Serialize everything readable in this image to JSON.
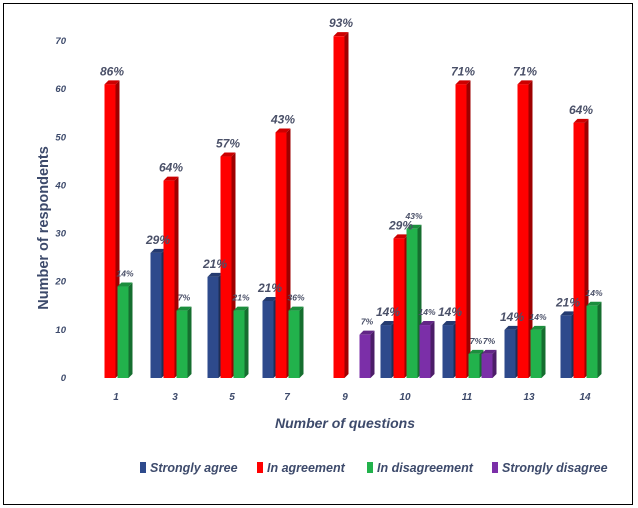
{
  "chart_data": {
    "type": "bar",
    "xlabel": "Number of questions",
    "ylabel": "Number of respondents",
    "ylim": [
      0,
      70
    ],
    "yticks": [
      "0",
      "10",
      "20",
      "30",
      "40",
      "50",
      "60",
      "70"
    ],
    "categories": [
      "1",
      "3",
      "5",
      "7",
      "9",
      "10",
      "11",
      "13",
      "14"
    ],
    "series": [
      {
        "name": "Strongly agree",
        "color": "#2e4a8c",
        "values": [
          0,
          26,
          21,
          16,
          0,
          11,
          11,
          10,
          13
        ],
        "labels": [
          "",
          "29%",
          "21%",
          "21%",
          "",
          "14%",
          "14%",
          "14%",
          "21%"
        ]
      },
      {
        "name": "In agreement",
        "color": "#ff0000",
        "values": [
          61,
          41,
          46,
          51,
          71,
          29,
          61,
          61,
          53
        ],
        "labels": [
          "86%",
          "64%",
          "57%",
          "43%",
          "93%",
          "29%",
          "71%",
          "71%",
          "64%"
        ]
      },
      {
        "name": "In disagreement",
        "color": "#22b24c",
        "values": [
          19,
          14,
          14,
          14,
          0,
          31,
          5,
          10,
          15
        ],
        "labels": [
          "14%",
          "7%",
          "21%",
          "36%",
          "",
          "43%",
          "7%",
          "14%",
          "14%"
        ]
      },
      {
        "name": "Strongly disagree",
        "color": "#7b2fa8",
        "values": [
          0,
          0,
          0,
          0,
          9,
          11,
          5,
          0,
          0
        ],
        "labels": [
          "",
          "",
          "",
          "",
          "7%",
          "14%",
          "7%",
          "",
          ""
        ]
      }
    ],
    "legend_position": "bottom",
    "grid": false
  }
}
